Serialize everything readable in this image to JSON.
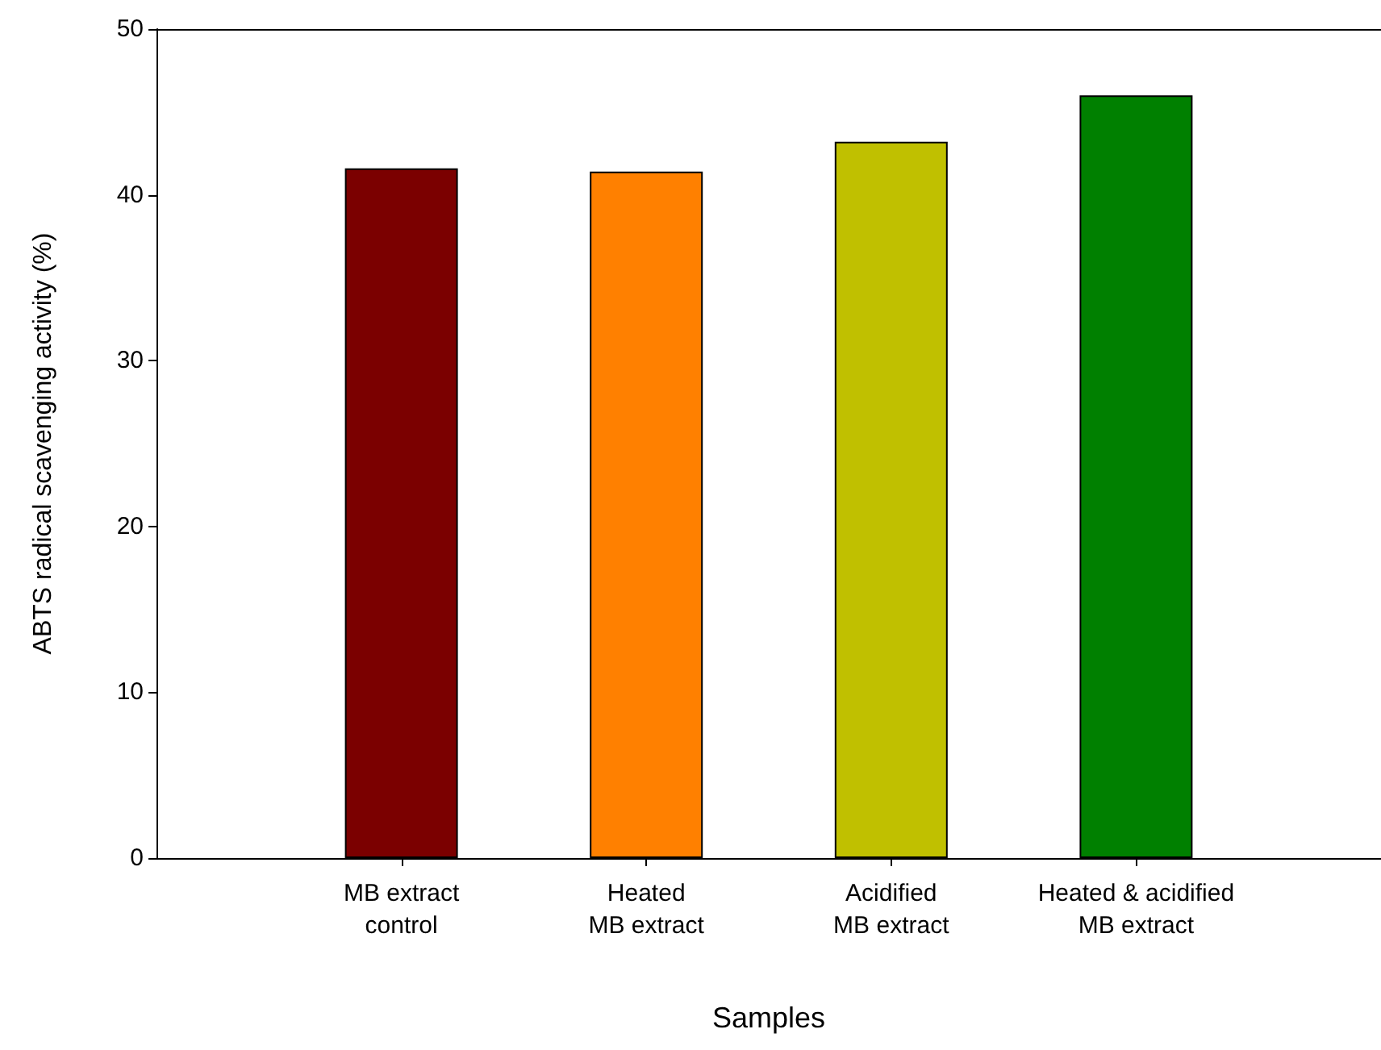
{
  "chart_data": {
    "type": "bar",
    "xlabel": "Samples",
    "ylabel": "ABTS radical scavenging activity (%)",
    "categories": [
      "MB extract\ncontrol",
      "Heated\nMB extract",
      "Acidified\nMB extract",
      "Heated & acidified\nMB extract"
    ],
    "values": [
      41.6,
      41.4,
      43.2,
      46.0
    ],
    "colors": [
      "#7b0000",
      "#ff8000",
      "#c0c000",
      "#008000"
    ],
    "ylim": [
      0,
      50
    ],
    "yticks": [
      0,
      10,
      20,
      30,
      40,
      50
    ],
    "grid": false
  }
}
